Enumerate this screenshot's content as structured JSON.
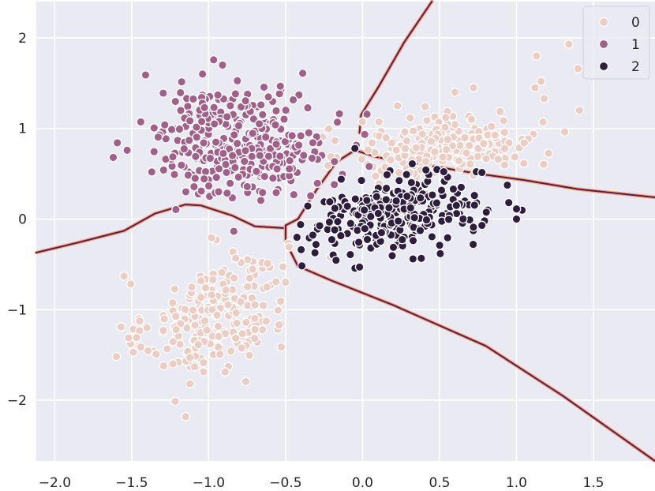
{
  "chart_data": {
    "type": "scatter",
    "title": "",
    "xlabel": "",
    "ylabel": "",
    "xlim": [
      -2.12,
      1.9
    ],
    "ylim": [
      -2.67,
      2.4
    ],
    "x_ticks": [
      -2.0,
      -1.5,
      -1.0,
      -0.5,
      0.0,
      0.5,
      1.0,
      1.5
    ],
    "x_tick_labels": [
      "−2.0",
      "−1.5",
      "−1.0",
      "−0.5",
      "0.0",
      "0.5",
      "1.0",
      "1.5"
    ],
    "y_ticks": [
      -2,
      -1,
      0,
      1,
      2
    ],
    "y_tick_labels": [
      "−2",
      "−1",
      "0",
      "1",
      "2"
    ],
    "grid": true,
    "legend_position": "top-right",
    "colors": {
      "background": "#EAEAF2",
      "grid": "#FFFFFF",
      "class0": "#EBCDC4",
      "class1": "#A0608A",
      "class2": "#2D1E3E",
      "boundary_light": "#F4A582",
      "boundary_dark": "#5B1D47"
    },
    "series": [
      {
        "name": "0",
        "color": "#EBCDC4",
        "clusters": [
          {
            "cx": -0.95,
            "cy": -1.05,
            "sx": 0.23,
            "sy": 0.34,
            "n": 240,
            "rho": 0.35
          },
          {
            "cx": 0.55,
            "cy": 0.82,
            "sx": 0.3,
            "sy": 0.17,
            "n": 220,
            "rho": 0.2
          }
        ],
        "points": [
          [
            -1.15,
            -2.18
          ],
          [
            -1.55,
            -0.63
          ],
          [
            -1.57,
            -1.19
          ],
          [
            -1.49,
            -1.47
          ],
          [
            -1.4,
            -1.2
          ],
          [
            0.6,
            1.4
          ],
          [
            0.72,
            1.45
          ],
          [
            1.13,
            1.8
          ],
          [
            1.34,
            1.93
          ],
          [
            1.41,
            1.2
          ],
          [
            1.4,
            1.66
          ],
          [
            1.16,
            1.52
          ],
          [
            1.18,
            1.33
          ],
          [
            1.12,
            1.45
          ]
        ]
      },
      {
        "name": "1",
        "color": "#A0608A",
        "clusters": [
          {
            "cx": -0.78,
            "cy": 0.85,
            "sx": 0.28,
            "sy": 0.3,
            "n": 340,
            "rho": 0.0
          }
        ],
        "points": [
          [
            -1.62,
            0.68
          ],
          [
            -1.41,
            1.59
          ],
          [
            -1.53,
            0.76
          ],
          [
            -1.37,
            0.52
          ],
          [
            -1.04,
            1.6
          ],
          [
            -0.91,
            1.7
          ]
        ]
      },
      {
        "name": "2",
        "color": "#2D1E3E",
        "clusters": [
          {
            "cx": 0.22,
            "cy": 0.05,
            "sx": 0.28,
            "sy": 0.2,
            "n": 300,
            "rho": 0.3
          }
        ],
        "points": [
          [
            1.0,
            0.0
          ],
          [
            0.72,
            -0.09
          ],
          [
            -0.05,
            0.78
          ],
          [
            -0.02,
            -0.53
          ]
        ]
      }
    ],
    "decision_boundaries": [
      {
        "name": "boundary-west",
        "points": [
          [
            -2.12,
            -0.37
          ],
          [
            -1.85,
            -0.26
          ],
          [
            -1.55,
            -0.13
          ],
          [
            -1.35,
            0.06
          ],
          [
            -1.15,
            0.16
          ],
          [
            -1.05,
            0.15
          ],
          [
            -0.85,
            0.04
          ],
          [
            -0.7,
            -0.08
          ],
          [
            -0.5,
            -0.1
          ]
        ]
      },
      {
        "name": "boundary-north",
        "points": [
          [
            -0.02,
            0.95
          ],
          [
            -0.01,
            1.15
          ],
          [
            0.1,
            1.45
          ],
          [
            0.27,
            1.95
          ],
          [
            0.45,
            2.4
          ]
        ]
      },
      {
        "name": "boundary-east",
        "points": [
          [
            -0.02,
            0.75
          ],
          [
            0.1,
            0.68
          ],
          [
            0.4,
            0.6
          ],
          [
            0.75,
            0.5
          ],
          [
            1.05,
            0.43
          ],
          [
            1.4,
            0.33
          ],
          [
            1.9,
            0.24
          ]
        ]
      },
      {
        "name": "boundary-south",
        "points": [
          [
            -0.5,
            -0.25
          ],
          [
            -0.42,
            -0.52
          ],
          [
            -0.2,
            -0.68
          ],
          [
            0.2,
            -0.95
          ],
          [
            0.8,
            -1.4
          ],
          [
            1.3,
            -1.95
          ],
          [
            1.9,
            -2.67
          ]
        ]
      },
      {
        "name": "boundary-core",
        "points": [
          [
            -0.5,
            -0.25
          ],
          [
            -0.5,
            -0.07
          ],
          [
            -0.42,
            0.0
          ],
          [
            -0.3,
            0.32
          ],
          [
            -0.17,
            0.63
          ],
          [
            -0.05,
            0.76
          ],
          [
            0.1,
            0.68
          ]
        ]
      }
    ]
  }
}
